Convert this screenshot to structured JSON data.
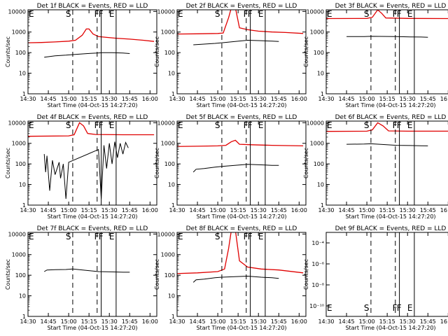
{
  "colors": {
    "events": "#000000",
    "lld": "#e00000",
    "axes": "#000000",
    "background": "#ffffff"
  },
  "xlabel": "Start Time (04-Oct-15 14:27:20)",
  "ylabel": "Counts/sec",
  "x_ticks": [
    "14:30",
    "14:45",
    "15:00",
    "15:15",
    "15:30",
    "15:45",
    "16:00"
  ],
  "x_range": [
    "14:30",
    "16:05"
  ],
  "y_scale": "log",
  "y_ticks_decade": [
    "1",
    "10",
    "100",
    "1000",
    "10000"
  ],
  "y_ticks_exp": [
    "10⁻¹⁰",
    "10⁻⁸",
    "10⁻⁶",
    "10⁻⁴"
  ],
  "markers": [
    {
      "label": "E",
      "time": "14:30",
      "style": "none"
    },
    {
      "label": "S",
      "time": "15:03",
      "style": "dashed"
    },
    {
      "label": "F",
      "time": "15:21",
      "style": "dashed"
    },
    {
      "label": "F",
      "time": "15:24",
      "style": "solid"
    },
    {
      "label": "E",
      "time": "15:35",
      "style": "solid"
    }
  ],
  "chart_data": [
    {
      "type": "line",
      "title": "Det 1f BLACK = Events, RED = LLD",
      "ylim": [
        1,
        12000
      ],
      "series": [
        {
          "color": "events",
          "points": [
            [
              "14:42",
              60
            ],
            [
              "14:50",
              70
            ],
            [
              "14:58",
              75
            ],
            [
              "15:03",
              80
            ],
            [
              "15:14",
              90
            ],
            [
              "15:21",
              95
            ],
            [
              "15:25",
              100
            ],
            [
              "15:32",
              100
            ],
            [
              "15:40",
              95
            ],
            [
              "15:45",
              90
            ]
          ]
        },
        {
          "color": "lld",
          "points": [
            [
              "14:30",
              300
            ],
            [
              "14:40",
              310
            ],
            [
              "14:50",
              330
            ],
            [
              "15:00",
              360
            ],
            [
              "15:05",
              400
            ],
            [
              "15:10",
              700
            ],
            [
              "15:13",
              1400
            ],
            [
              "15:15",
              1400
            ],
            [
              "15:18",
              800
            ],
            [
              "15:22",
              600
            ],
            [
              "15:28",
              550
            ],
            [
              "15:35",
              500
            ],
            [
              "15:45",
              450
            ],
            [
              "15:55",
              400
            ],
            [
              "16:03",
              350
            ]
          ]
        }
      ]
    },
    {
      "type": "line",
      "title": "Det 2f BLACK = Events, RED = LLD",
      "ylim": [
        1,
        12000
      ],
      "series": [
        {
          "color": "events",
          "points": [
            [
              "14:42",
              240
            ],
            [
              "14:50",
              260
            ],
            [
              "14:58",
              280
            ],
            [
              "15:03",
              300
            ],
            [
              "15:22",
              400
            ],
            [
              "15:32",
              380
            ],
            [
              "15:40",
              360
            ],
            [
              "15:45",
              350
            ]
          ]
        },
        {
          "color": "lld",
          "points": [
            [
              "14:30",
              800
            ],
            [
              "14:45",
              820
            ],
            [
              "15:00",
              850
            ],
            [
              "15:04",
              900
            ],
            [
              "15:08",
              5000
            ],
            [
              "15:10",
              15000
            ],
            [
              "15:13",
              15000
            ],
            [
              "15:16",
              1600
            ],
            [
              "15:22",
              1300
            ],
            [
              "15:30",
              1100
            ],
            [
              "15:40",
              1000
            ],
            [
              "15:50",
              950
            ],
            [
              "16:03",
              850
            ]
          ]
        }
      ]
    },
    {
      "type": "line",
      "title": "Det 3f BLACK = Events, RED = LLD",
      "ylim": [
        1,
        12000
      ],
      "series": [
        {
          "color": "events",
          "points": [
            [
              "14:45",
              600
            ],
            [
              "14:58",
              600
            ],
            [
              "15:03",
              620
            ],
            [
              "15:22",
              600
            ],
            [
              "15:32",
              580
            ],
            [
              "15:40",
              570
            ],
            [
              "15:45",
              560
            ]
          ]
        },
        {
          "color": "lld",
          "points": [
            [
              "14:30",
              4500
            ],
            [
              "15:00",
              4600
            ],
            [
              "15:04",
              5200
            ],
            [
              "15:08",
              12000
            ],
            [
              "15:11",
              8000
            ],
            [
              "15:14",
              4800
            ],
            [
              "15:30",
              4600
            ],
            [
              "16:03",
              4500
            ]
          ]
        }
      ]
    },
    {
      "type": "line",
      "title": "Det 4f BLACK = Events, RED = LLD",
      "ylim": [
        1,
        12000
      ],
      "series": [
        {
          "color": "events",
          "points": [
            [
              "14:42",
              300
            ],
            [
              "14:43",
              40
            ],
            [
              "14:44",
              250
            ],
            [
              "14:46",
              5
            ],
            [
              "14:48",
              150
            ],
            [
              "14:50",
              30
            ],
            [
              "14:53",
              120
            ],
            [
              "14:54",
              20
            ],
            [
              "14:56",
              100
            ],
            [
              "14:58",
              2
            ],
            [
              "15:00",
              120
            ],
            [
              "15:22",
              500
            ],
            [
              "15:24",
              2
            ],
            [
              "15:26",
              800
            ],
            [
              "15:28",
              60
            ],
            [
              "15:30",
              1000
            ],
            [
              "15:32",
              100
            ],
            [
              "15:34",
              1200
            ],
            [
              "15:36",
              200
            ],
            [
              "15:38",
              1000
            ],
            [
              "15:40",
              300
            ],
            [
              "15:42",
              1100
            ],
            [
              "15:44",
              600
            ]
          ]
        },
        {
          "color": "lld",
          "points": [
            [
              "14:30",
              2200
            ],
            [
              "15:00",
              2300
            ],
            [
              "15:04",
              2600
            ],
            [
              "15:08",
              10000
            ],
            [
              "15:11",
              7000
            ],
            [
              "15:14",
              3000
            ],
            [
              "15:20",
              2700
            ],
            [
              "15:40",
              2600
            ],
            [
              "16:03",
              2600
            ]
          ]
        }
      ]
    },
    {
      "type": "line",
      "title": "Det 5f BLACK = Events, RED = LLD",
      "ylim": [
        1,
        12000
      ],
      "series": [
        {
          "color": "events",
          "points": [
            [
              "14:42",
              40
            ],
            [
              "14:44",
              55
            ],
            [
              "14:50",
              60
            ],
            [
              "14:58",
              70
            ],
            [
              "15:03",
              75
            ],
            [
              "15:22",
              95
            ],
            [
              "15:32",
              90
            ],
            [
              "15:40",
              85
            ],
            [
              "15:45",
              85
            ]
          ]
        },
        {
          "color": "lld",
          "points": [
            [
              "14:30",
              700
            ],
            [
              "14:45",
              720
            ],
            [
              "15:00",
              750
            ],
            [
              "15:06",
              800
            ],
            [
              "15:10",
              1200
            ],
            [
              "15:13",
              1400
            ],
            [
              "15:16",
              900
            ],
            [
              "15:25",
              850
            ],
            [
              "15:40",
              800
            ],
            [
              "16:03",
              750
            ]
          ]
        }
      ]
    },
    {
      "type": "line",
      "title": "Det 6f BLACK = Events, RED = LLD",
      "ylim": [
        1,
        12000
      ],
      "series": [
        {
          "color": "events",
          "points": [
            [
              "14:45",
              900
            ],
            [
              "14:58",
              920
            ],
            [
              "15:03",
              950
            ],
            [
              "15:22",
              800
            ],
            [
              "15:32",
              780
            ],
            [
              "15:40",
              760
            ],
            [
              "15:45",
              750
            ]
          ]
        },
        {
          "color": "lld",
          "points": [
            [
              "14:30",
              3800
            ],
            [
              "15:00",
              3900
            ],
            [
              "15:04",
              4500
            ],
            [
              "15:08",
              10000
            ],
            [
              "15:12",
              7000
            ],
            [
              "15:16",
              4000
            ],
            [
              "15:30",
              3900
            ],
            [
              "16:03",
              3900
            ]
          ]
        }
      ]
    },
    {
      "type": "line",
      "title": "Det 7f BLACK = Events, RED = LLD",
      "ylim": [
        1,
        12000
      ],
      "series": [
        {
          "color": "events",
          "points": [
            [
              "14:42",
              150
            ],
            [
              "14:44",
              180
            ],
            [
              "14:50",
              185
            ],
            [
              "14:58",
              190
            ],
            [
              "15:03",
              200
            ],
            [
              "15:22",
              150
            ],
            [
              "15:32",
              145
            ],
            [
              "15:40",
              140
            ],
            [
              "15:45",
              140
            ]
          ]
        }
      ]
    },
    {
      "type": "line",
      "title": "Det 8f BLACK = Events, RED = LLD",
      "ylim": [
        1,
        12000
      ],
      "series": [
        {
          "color": "events",
          "points": [
            [
              "14:42",
              45
            ],
            [
              "14:44",
              60
            ],
            [
              "14:50",
              65
            ],
            [
              "14:58",
              75
            ],
            [
              "15:03",
              80
            ],
            [
              "15:22",
              90
            ],
            [
              "15:32",
              80
            ],
            [
              "15:40",
              75
            ],
            [
              "15:45",
              70
            ]
          ]
        },
        {
          "color": "lld",
          "points": [
            [
              "14:30",
              120
            ],
            [
              "14:45",
              130
            ],
            [
              "15:00",
              150
            ],
            [
              "15:05",
              200
            ],
            [
              "15:08",
              2000
            ],
            [
              "15:10",
              15000
            ],
            [
              "15:13",
              15000
            ],
            [
              "15:16",
              500
            ],
            [
              "15:22",
              250
            ],
            [
              "15:32",
              200
            ],
            [
              "15:45",
              180
            ],
            [
              "16:03",
              130
            ]
          ]
        }
      ]
    },
    {
      "type": "line",
      "title": "Det 9f BLACK = Events, RED = LLD",
      "ylim": [
        1e-11,
        0.001
      ],
      "series": []
    }
  ]
}
